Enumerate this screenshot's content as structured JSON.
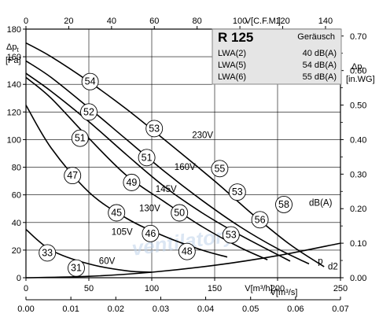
{
  "chart_data": {
    "type": "line",
    "title": "R 125",
    "legend": {
      "header": "Geräusch",
      "rows": [
        {
          "label": "LWA(2)",
          "value": "40 dB(A)"
        },
        {
          "label": "LWA(5)",
          "value": "54 dB(A)"
        },
        {
          "label": "LWA(6)",
          "value": "55 dB(A)"
        }
      ]
    },
    "x_axis": {
      "label": "V[m³/h]",
      "range": [
        0,
        250
      ],
      "ticks": [
        "0",
        "50",
        "100",
        "150",
        "200",
        "250"
      ]
    },
    "x_axis_secondary": {
      "label": "V[m³/s]",
      "range": [
        0,
        0.07
      ],
      "ticks": [
        "0.00",
        "0.01",
        "0.02",
        "0.03",
        "0.04",
        "0.05",
        "0.06",
        "0.07"
      ]
    },
    "x_axis_top": {
      "label": "V[C.F.M.]",
      "range": [
        0,
        147
      ],
      "ticks": [
        "0",
        "20",
        "40",
        "60",
        "80",
        "100",
        "120",
        "140"
      ]
    },
    "y_axis": {
      "label": "Δpt",
      "unit": "[Pa]",
      "range": [
        0,
        180
      ],
      "ticks": [
        "0",
        "20",
        "40",
        "60",
        "80",
        "100",
        "120",
        "140",
        "160",
        "180"
      ]
    },
    "y_axis_right": {
      "label": "Δpt",
      "unit": "[in.WG]",
      "range": [
        0,
        0.72
      ],
      "ticks": [
        "0.00",
        "0.10",
        "0.20",
        "0.30",
        "0.40",
        "0.50",
        "0.60",
        "0.70"
      ]
    },
    "grid": true,
    "series": [
      {
        "name": "230V",
        "x": [
          0,
          20,
          50,
          80,
          110,
          150,
          180,
          210,
          237
        ],
        "y": [
          170,
          160,
          142,
          122,
          100,
          70,
          46,
          24,
          8
        ]
      },
      {
        "name": "160V",
        "x": [
          0,
          20,
          50,
          80,
          110,
          140,
          170,
          200,
          225
        ],
        "y": [
          157,
          145,
          123,
          100,
          77,
          56,
          37,
          21,
          10
        ]
      },
      {
        "name": "145V",
        "x": [
          0,
          20,
          50,
          80,
          110,
          140,
          170,
          210
        ],
        "y": [
          148,
          135,
          113,
          89,
          66,
          47,
          31,
          12
        ]
      },
      {
        "name": "130V",
        "x": [
          0,
          20,
          50,
          80,
          110,
          140,
          170,
          192
        ],
        "y": [
          145,
          130,
          101,
          74,
          55,
          37,
          22,
          13
        ]
      },
      {
        "name": "105V",
        "x": [
          0,
          20,
          50,
          80,
          110,
          140,
          160
        ],
        "y": [
          125,
          94,
          62,
          43,
          30,
          20,
          15
        ]
      },
      {
        "name": "60V",
        "x": [
          0,
          20,
          50,
          80,
          100
        ],
        "y": [
          35,
          20,
          10,
          5,
          4
        ]
      },
      {
        "name": "pd2",
        "x": [
          0,
          50,
          100,
          150,
          200,
          250
        ],
        "y": [
          0,
          1,
          4,
          9,
          16,
          25
        ]
      }
    ],
    "curve_labels": [
      {
        "text": "230V",
        "x": 132,
        "y": 101
      },
      {
        "text": "160V",
        "x": 118,
        "y": 78
      },
      {
        "text": "145V",
        "x": 103,
        "y": 62
      },
      {
        "text": "130V",
        "x": 90,
        "y": 48
      },
      {
        "text": "105V",
        "x": 68,
        "y": 31
      },
      {
        "text": "60V",
        "x": 58,
        "y": 10
      },
      {
        "text": "p",
        "x": 232,
        "y": 10
      },
      {
        "text": "d2",
        "x": 240,
        "y": 6
      },
      {
        "text": "dB(A)",
        "x": 225,
        "y": 52
      }
    ],
    "noise_markers": [
      {
        "value": "54",
        "x": 51,
        "y": 142
      },
      {
        "value": "52",
        "x": 50,
        "y": 120
      },
      {
        "value": "51",
        "x": 43,
        "y": 101
      },
      {
        "value": "47",
        "x": 37,
        "y": 74
      },
      {
        "value": "53",
        "x": 102,
        "y": 108
      },
      {
        "value": "51",
        "x": 96,
        "y": 87
      },
      {
        "value": "49",
        "x": 84,
        "y": 69
      },
      {
        "value": "45",
        "x": 72,
        "y": 47
      },
      {
        "value": "46",
        "x": 99,
        "y": 32
      },
      {
        "value": "50",
        "x": 122,
        "y": 47
      },
      {
        "value": "48",
        "x": 128,
        "y": 19
      },
      {
        "value": "53",
        "x": 168,
        "y": 62
      },
      {
        "value": "55",
        "x": 154,
        "y": 79
      },
      {
        "value": "56",
        "x": 186,
        "y": 42
      },
      {
        "value": "53",
        "x": 163,
        "y": 31
      },
      {
        "value": "58",
        "x": 205,
        "y": 53
      },
      {
        "value": "33",
        "x": 17,
        "y": 18
      },
      {
        "value": "31",
        "x": 40,
        "y": 7
      }
    ],
    "watermark": "ventilatory"
  }
}
